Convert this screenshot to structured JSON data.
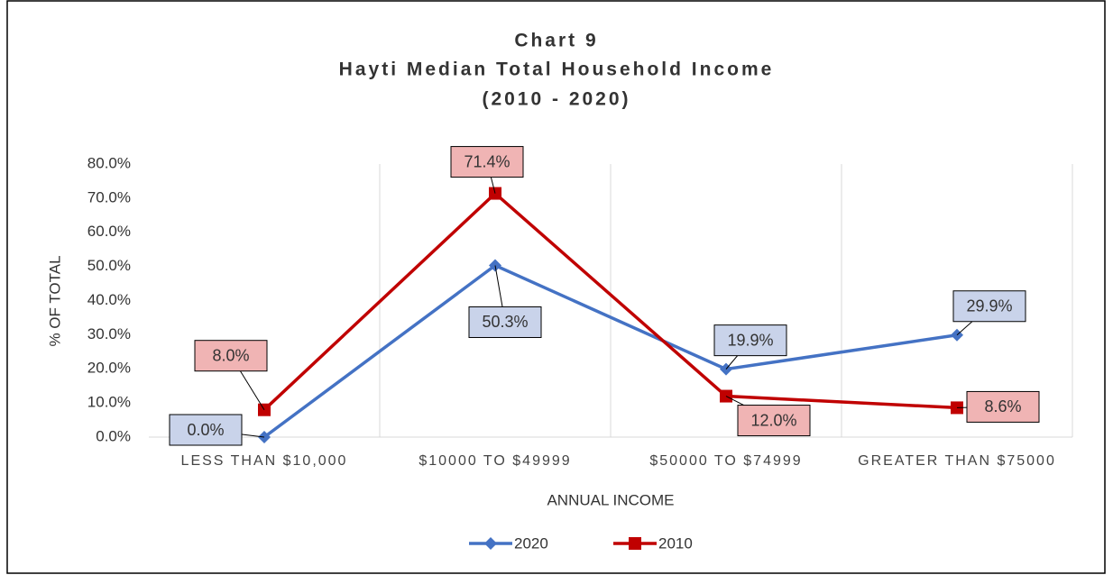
{
  "chart_data": {
    "type": "line",
    "title": "Chart 9",
    "subtitle": "Hayti Median Total Household Income",
    "subtitle2": "(2010 - 2020)",
    "y_label": "% OF TOTAL",
    "x_label": "ANNUAL INCOME",
    "categories": [
      "LESS THAN $10,000",
      "$10000 TO $49999",
      "$50000 TO $74999",
      "GREATER THAN $75000"
    ],
    "series": [
      {
        "name": "2020",
        "color": "#4472c4",
        "marker": "diamond",
        "values": [
          0.0,
          50.3,
          19.9,
          29.9
        ],
        "value_labels": [
          "0.0%",
          "50.3%",
          "19.9%",
          "29.9%"
        ]
      },
      {
        "name": "2010",
        "color": "#c00000",
        "marker": "square",
        "values": [
          8.0,
          71.4,
          12.0,
          8.6
        ],
        "value_labels": [
          "8.0%",
          "71.4%",
          "12.0%",
          "8.6%"
        ]
      }
    ],
    "ylim": [
      0,
      80
    ],
    "yticks": [
      {
        "value": 0,
        "label": "0.0%"
      },
      {
        "value": 10,
        "label": "10.0%"
      },
      {
        "value": 20,
        "label": "20.0%"
      },
      {
        "value": 30,
        "label": "30.0%"
      },
      {
        "value": 40,
        "label": "40.0%"
      },
      {
        "value": 50,
        "label": "50.0%"
      },
      {
        "value": 60,
        "label": "60.0%"
      },
      {
        "value": 70,
        "label": "70.0%"
      },
      {
        "value": 80,
        "label": "80.0%"
      }
    ],
    "legend": "bottom"
  }
}
